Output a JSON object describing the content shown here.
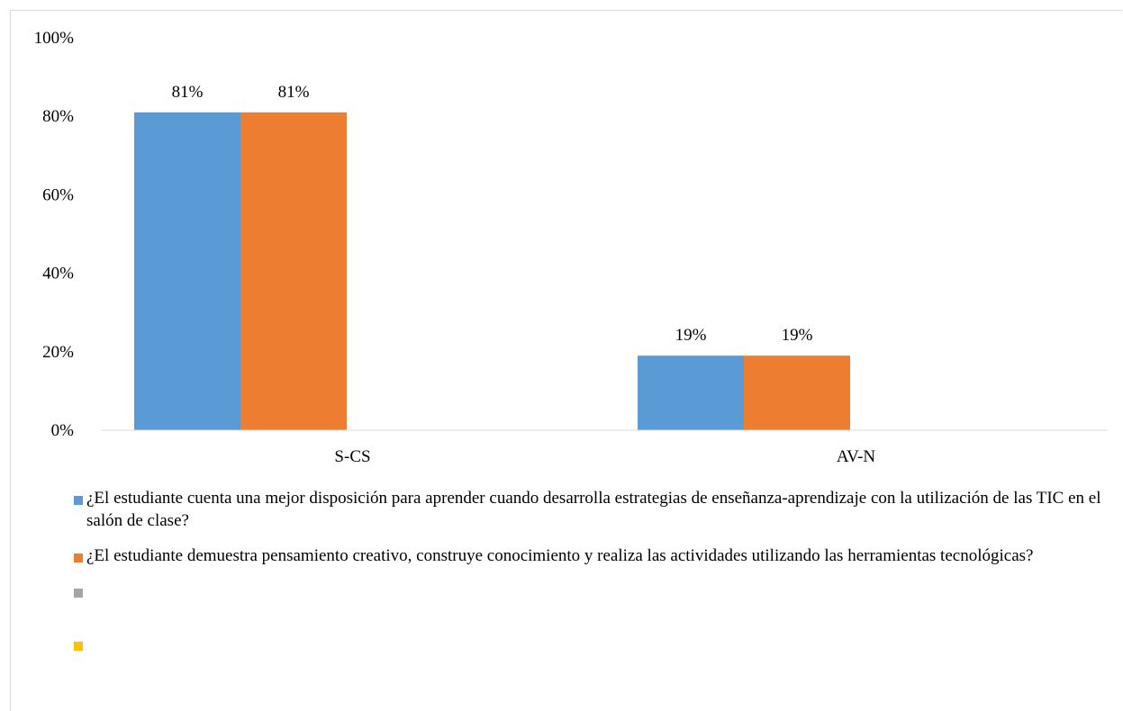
{
  "chart_data": {
    "type": "bar",
    "categories": [
      "S-CS",
      "AV-N"
    ],
    "series": [
      {
        "name": "¿El estudiante cuenta una mejor disposición para aprender cuando desarrolla estrategias de enseñanza-aprendizaje con la utilización de las TIC en el salón de clase?",
        "values": [
          0.81,
          0.19
        ],
        "labels": [
          "81%",
          "19%"
        ],
        "color": "#5b9bd5"
      },
      {
        "name": "¿El  estudiante demuestra pensamiento creativo, construye conocimiento y realiza las actividades  utilizando las herramientas tecnológicas?",
        "values": [
          0.81,
          0.19
        ],
        "labels": [
          "81%",
          "19%"
        ],
        "color": "#ed7d31"
      },
      {
        "name": "",
        "values": [
          0,
          0
        ],
        "labels": [
          "",
          ""
        ],
        "color": "#a5a5a5"
      },
      {
        "name": "",
        "values": [
          0,
          0
        ],
        "labels": [
          "",
          ""
        ],
        "color": "#ffc000"
      }
    ],
    "y_ticks": [
      "0%",
      "20%",
      "40%",
      "60%",
      "80%",
      "100%"
    ],
    "ylim": [
      0,
      1
    ],
    "grid": false,
    "legend_position": "bottom",
    "title": "",
    "xlabel": "",
    "ylabel": ""
  }
}
